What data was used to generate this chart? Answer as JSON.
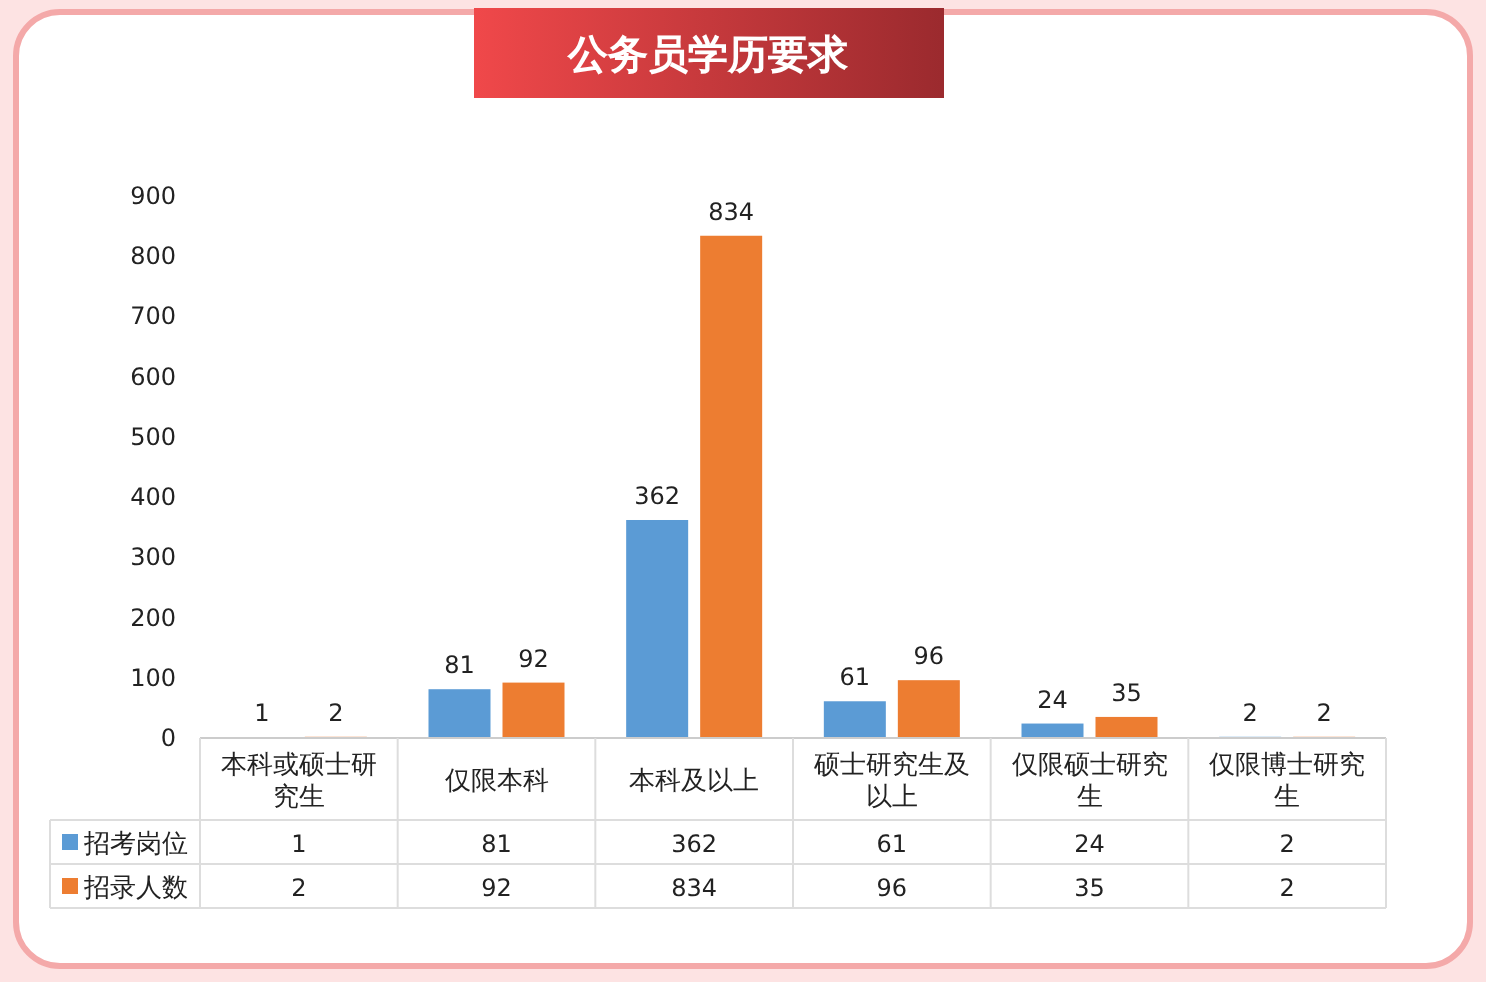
{
  "chart_data": {
    "type": "bar",
    "title": "公务员学历要求",
    "categories": [
      "本科或硕士研究生",
      "仅限本科",
      "本科及以上",
      "硕士研究生及以上",
      "仅限硕士研究生",
      "仅限博士研究生"
    ],
    "series": [
      {
        "name": "招考岗位",
        "color": "#5b9bd5",
        "values": [
          1,
          81,
          362,
          61,
          24,
          2
        ],
        "value_labels": [
          "1",
          "81",
          "362",
          "61",
          "24",
          "2"
        ]
      },
      {
        "name": "招录人数",
        "color": "#ed7d31",
        "values": [
          2,
          92,
          834,
          96,
          35,
          2
        ],
        "value_labels": [
          "2",
          "92",
          "834",
          "96",
          "35",
          "2"
        ]
      }
    ],
    "ylim": [
      0,
      900
    ],
    "yticks": [
      0,
      100,
      200,
      300,
      400,
      500,
      600,
      700,
      800,
      900
    ],
    "grid": false,
    "legend": "bottom left",
    "data_labels": true
  }
}
